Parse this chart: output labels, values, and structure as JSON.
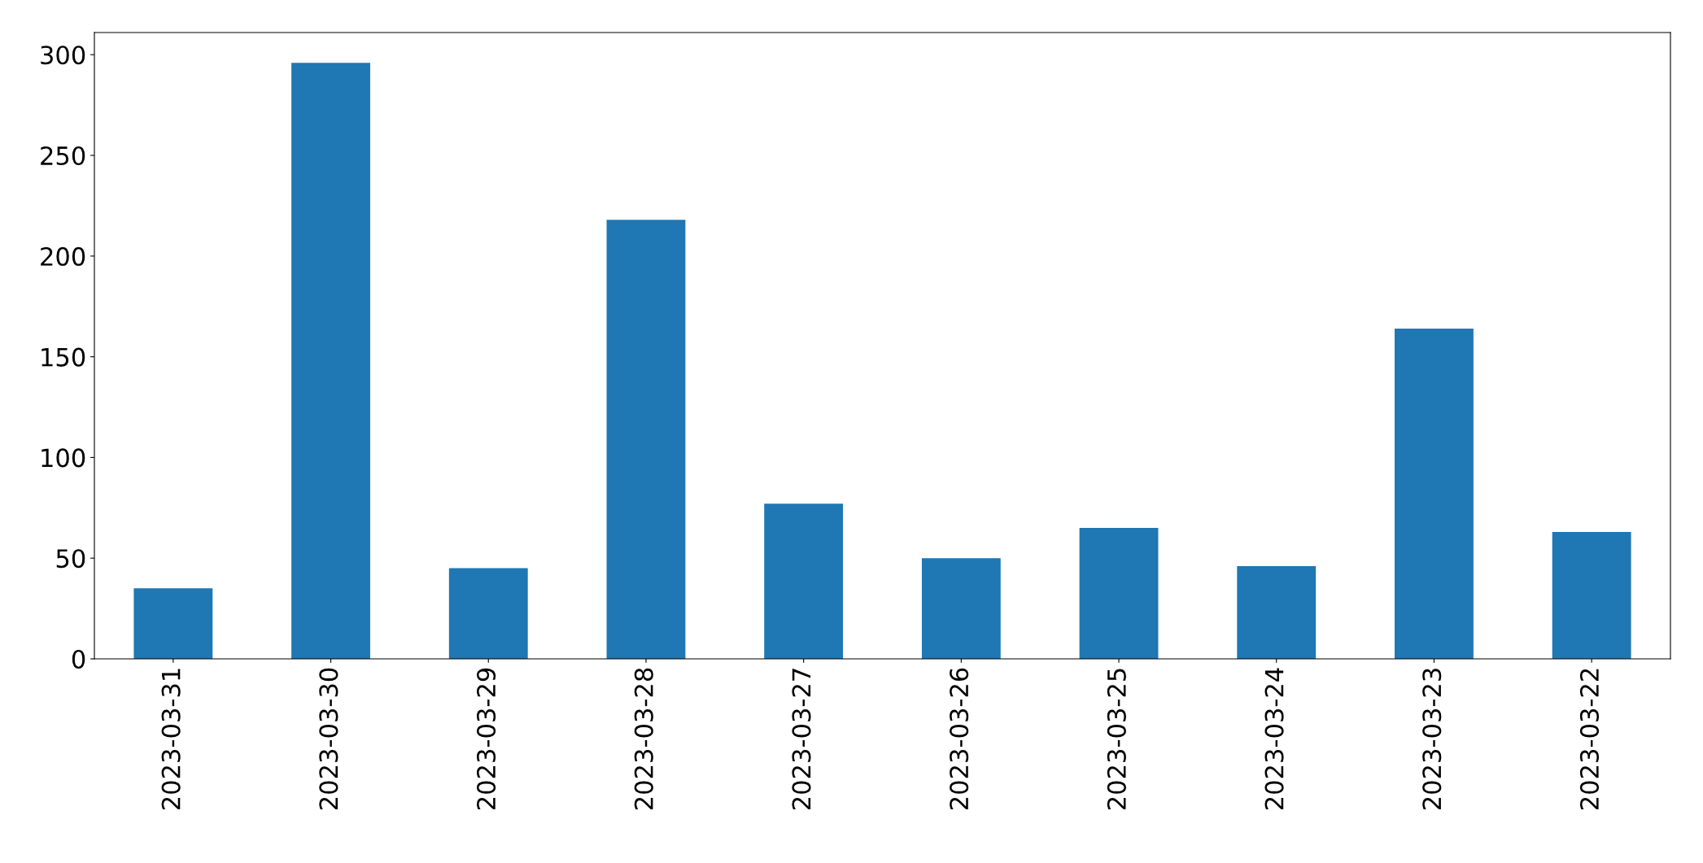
{
  "chart_data": {
    "type": "bar",
    "categories": [
      "2023-03-31",
      "2023-03-30",
      "2023-03-29",
      "2023-03-28",
      "2023-03-27",
      "2023-03-26",
      "2023-03-25",
      "2023-03-24",
      "2023-03-23",
      "2023-03-22"
    ],
    "values": [
      35,
      296,
      45,
      218,
      77,
      50,
      65,
      46,
      164,
      63
    ],
    "color": "#1f77b4",
    "ylim": [
      0,
      311
    ],
    "yticks": [
      0,
      50,
      100,
      150,
      200,
      250,
      300
    ],
    "grid": false,
    "legend": false
  }
}
